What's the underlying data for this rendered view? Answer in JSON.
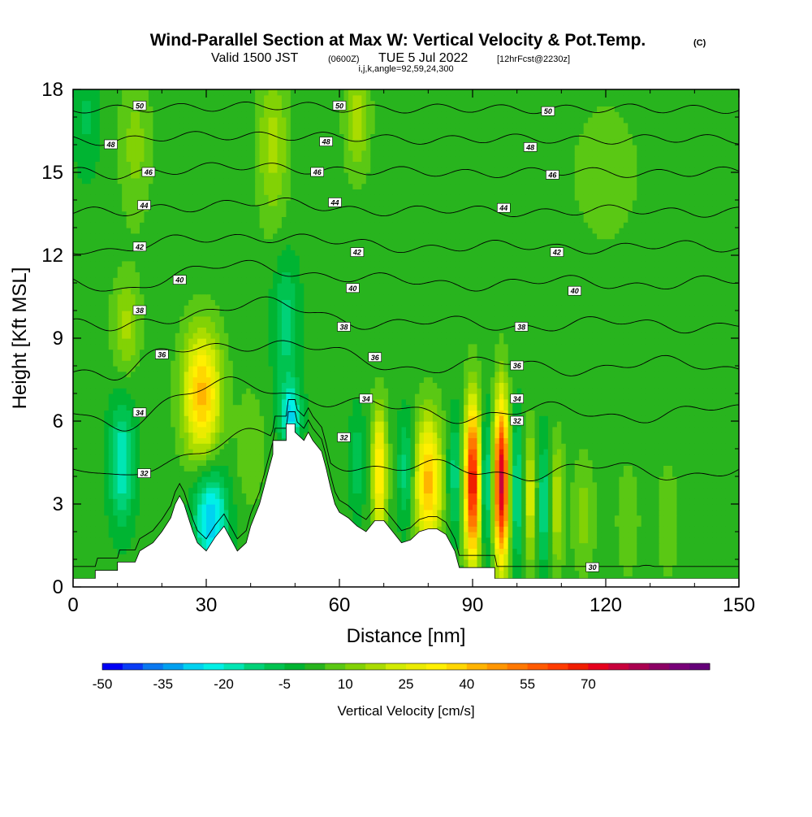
{
  "header": {
    "title": "Wind-Parallel Section at Max W: Vertical Velocity & Pot.Temp.",
    "copyright": "(C)",
    "valid_prefix": "Valid 1500 JST",
    "valid_zulu": "(0600Z)",
    "valid_date": "TUE 5 Jul 2022",
    "forecast": "[12hrFcst@2230z]",
    "params": "i,j,k,angle=92,59,24,300"
  },
  "chart_data": {
    "type": "heatmap",
    "title": "Wind-Parallel Section at Max W: Vertical Velocity & Pot.Temp.",
    "xlabel": "Distance [nm]",
    "ylabel": "Height [Kft MSL]",
    "xlim": [
      0,
      150
    ],
    "ylim": [
      0,
      18
    ],
    "x_ticks": [
      "0",
      "30",
      "60",
      "90",
      "120",
      "150"
    ],
    "y_ticks": [
      "0",
      "3",
      "6",
      "9",
      "12",
      "15",
      "18"
    ],
    "background_w": 2,
    "terrain": [
      [
        0,
        0.3
      ],
      [
        5,
        0.3
      ],
      [
        5,
        0.6
      ],
      [
        10,
        0.6
      ],
      [
        10,
        0.9
      ],
      [
        14,
        0.9
      ],
      [
        15,
        1.3
      ],
      [
        18,
        1.6
      ],
      [
        20,
        2.0
      ],
      [
        22,
        2.5
      ],
      [
        23,
        3.0
      ],
      [
        24,
        3.3
      ],
      [
        25,
        3.0
      ],
      [
        26,
        2.5
      ],
      [
        27,
        2.0
      ],
      [
        28,
        1.6
      ],
      [
        30,
        1.3
      ],
      [
        32,
        1.8
      ],
      [
        34,
        2.2
      ],
      [
        36,
        1.6
      ],
      [
        37,
        1.3
      ],
      [
        39,
        1.6
      ],
      [
        40,
        2.2
      ],
      [
        41,
        2.6
      ],
      [
        42,
        3.0
      ],
      [
        43,
        3.6
      ],
      [
        44,
        4.2
      ],
      [
        45,
        4.8
      ],
      [
        45,
        5.3
      ],
      [
        48,
        5.3
      ],
      [
        48,
        5.9
      ],
      [
        50,
        5.9
      ],
      [
        50,
        5.6
      ],
      [
        52,
        5.3
      ],
      [
        53,
        5.6
      ],
      [
        54,
        5.3
      ],
      [
        56,
        4.9
      ],
      [
        57,
        4.3
      ],
      [
        58,
        3.6
      ],
      [
        59,
        3.0
      ],
      [
        60,
        2.7
      ],
      [
        62,
        2.5
      ],
      [
        64,
        2.2
      ],
      [
        66,
        2.0
      ],
      [
        68,
        2.4
      ],
      [
        70,
        2.4
      ],
      [
        72,
        2.0
      ],
      [
        74,
        1.6
      ],
      [
        76,
        1.7
      ],
      [
        78,
        2.0
      ],
      [
        80,
        2.1
      ],
      [
        82,
        2.1
      ],
      [
        84,
        1.9
      ],
      [
        86,
        1.3
      ],
      [
        87,
        0.7
      ],
      [
        95,
        0.7
      ],
      [
        95,
        0.3
      ],
      [
        98,
        0.3
      ],
      [
        100,
        0.3
      ],
      [
        150,
        0.3
      ]
    ],
    "w_blobs": [
      {
        "x": 12,
        "y": 9.5,
        "w": 15,
        "sx": 2.2,
        "sy": 1.2
      },
      {
        "x": 11,
        "y": 4.5,
        "w": -22,
        "sx": 2.0,
        "sy": 1.5
      },
      {
        "x": 29,
        "y": 7.0,
        "w": 40,
        "sx": 3.0,
        "sy": 1.6
      },
      {
        "x": 31,
        "y": 2.5,
        "w": -32,
        "sx": 2.6,
        "sy": 1.2
      },
      {
        "x": 48,
        "y": 9.5,
        "w": -15,
        "sx": 2.0,
        "sy": 1.6
      },
      {
        "x": 49,
        "y": 6.2,
        "w": -28,
        "sx": 1.6,
        "sy": 0.8
      },
      {
        "x": 40,
        "y": 5.0,
        "w": 8,
        "sx": 2.2,
        "sy": 1.5
      },
      {
        "x": 64,
        "y": 4.5,
        "w": -12,
        "sx": 1.2,
        "sy": 1.2
      },
      {
        "x": 69,
        "y": 4.2,
        "w": 35,
        "sx": 1.2,
        "sy": 1.6
      },
      {
        "x": 75,
        "y": 4.2,
        "w": -16,
        "sx": 1.3,
        "sy": 1.4
      },
      {
        "x": 80,
        "y": 3.8,
        "w": 40,
        "sx": 2.2,
        "sy": 1.7
      },
      {
        "x": 86,
        "y": 4.0,
        "w": -16,
        "sx": 1.2,
        "sy": 1.5
      },
      {
        "x": 90,
        "y": 3.8,
        "w": 70,
        "sx": 1.3,
        "sy": 2.0
      },
      {
        "x": 93,
        "y": 3.8,
        "w": -22,
        "sx": 1.0,
        "sy": 1.7
      },
      {
        "x": 96.5,
        "y": 3.8,
        "w": 75,
        "sx": 1.2,
        "sy": 2.1
      },
      {
        "x": 100,
        "y": 3.5,
        "w": -20,
        "sx": 1.0,
        "sy": 1.8
      },
      {
        "x": 103,
        "y": 3.2,
        "w": 22,
        "sx": 1.1,
        "sy": 1.7
      },
      {
        "x": 106,
        "y": 3.0,
        "w": -18,
        "sx": 1.0,
        "sy": 1.6
      },
      {
        "x": 109,
        "y": 3.0,
        "w": 18,
        "sx": 1.1,
        "sy": 1.6
      },
      {
        "x": 115,
        "y": 2.6,
        "w": 10,
        "sx": 1.8,
        "sy": 1.6
      },
      {
        "x": 125,
        "y": 2.4,
        "w": 8,
        "sx": 1.8,
        "sy": 1.5
      },
      {
        "x": 134,
        "y": 2.4,
        "w": 8,
        "sx": 1.6,
        "sy": 1.5
      },
      {
        "x": 14,
        "y": 16.0,
        "w": 10,
        "sx": 2.5,
        "sy": 2.0
      },
      {
        "x": 45,
        "y": 16.0,
        "w": 15,
        "sx": 2.5,
        "sy": 2.0
      },
      {
        "x": 64,
        "y": 17.0,
        "w": 15,
        "sx": 2.0,
        "sy": 1.5
      },
      {
        "x": 3,
        "y": 17.0,
        "w": -8,
        "sx": 2.0,
        "sy": 1.5
      },
      {
        "x": 120,
        "y": 15.0,
        "w": 6,
        "sx": 6.0,
        "sy": 2.0
      }
    ],
    "theta_isolines": [
      {
        "level": 30,
        "base": 0.4,
        "bump": 1.0
      },
      {
        "level": 32,
        "base": 4.2,
        "bump": 1.2
      },
      {
        "level": 34,
        "base": 6.3,
        "bump": 1.0
      },
      {
        "level": 36,
        "base": 8.0,
        "bump": 0.9
      },
      {
        "level": 38,
        "base": 9.5,
        "bump": 0.7
      },
      {
        "level": 40,
        "base": 11.0,
        "bump": 0.6
      },
      {
        "level": 42,
        "base": 12.3,
        "bump": 0.4
      },
      {
        "level": 44,
        "base": 13.6,
        "bump": 0.3
      },
      {
        "level": 46,
        "base": 15.0,
        "bump": 0.2
      },
      {
        "level": 48,
        "base": 16.2,
        "bump": 0.15
      },
      {
        "level": 50,
        "base": 17.3,
        "bump": 0.1
      }
    ],
    "contour_labels": [
      {
        "text": "50",
        "x": 15,
        "y": 17.4
      },
      {
        "text": "50",
        "x": 60,
        "y": 17.4
      },
      {
        "text": "50",
        "x": 107,
        "y": 17.2
      },
      {
        "text": "48",
        "x": 8.5,
        "y": 16.0
      },
      {
        "text": "48",
        "x": 57,
        "y": 16.1
      },
      {
        "text": "48",
        "x": 103,
        "y": 15.9
      },
      {
        "text": "46",
        "x": 17,
        "y": 15.0
      },
      {
        "text": "46",
        "x": 55,
        "y": 15.0
      },
      {
        "text": "46",
        "x": 108,
        "y": 14.9
      },
      {
        "text": "44",
        "x": 16,
        "y": 13.8
      },
      {
        "text": "44",
        "x": 59,
        "y": 13.9
      },
      {
        "text": "44",
        "x": 97,
        "y": 13.7
      },
      {
        "text": "42",
        "x": 15,
        "y": 12.3
      },
      {
        "text": "42",
        "x": 64,
        "y": 12.1
      },
      {
        "text": "42",
        "x": 109,
        "y": 12.1
      },
      {
        "text": "40",
        "x": 24,
        "y": 11.1
      },
      {
        "text": "40",
        "x": 63,
        "y": 10.8
      },
      {
        "text": "40",
        "x": 113,
        "y": 10.7
      },
      {
        "text": "38",
        "x": 15,
        "y": 10.0
      },
      {
        "text": "38",
        "x": 61,
        "y": 9.4
      },
      {
        "text": "38",
        "x": 101,
        "y": 9.4
      },
      {
        "text": "36",
        "x": 20,
        "y": 8.4
      },
      {
        "text": "36",
        "x": 68,
        "y": 8.3
      },
      {
        "text": "36",
        "x": 100,
        "y": 8.0
      },
      {
        "text": "34",
        "x": 15,
        "y": 6.3
      },
      {
        "text": "34",
        "x": 66,
        "y": 6.8
      },
      {
        "text": "34",
        "x": 100,
        "y": 6.8
      },
      {
        "text": "32",
        "x": 16,
        "y": 4.1
      },
      {
        "text": "32",
        "x": 61,
        "y": 5.4
      },
      {
        "text": "32",
        "x": 100,
        "y": 6.0
      },
      {
        "text": "30",
        "x": 117,
        "y": 0.7
      }
    ]
  },
  "colorbar": {
    "title": "Vertical Velocity [cm/s]",
    "tick_labels": [
      "-50",
      "-35",
      "-20",
      "-5",
      "10",
      "25",
      "40",
      "55",
      "70"
    ],
    "colors": [
      "#0000f5",
      "#0a3cf5",
      "#0a78f0",
      "#00a0f0",
      "#00d2f0",
      "#00f0e6",
      "#00e6b4",
      "#00d278",
      "#00c350",
      "#00b432",
      "#28b41e",
      "#5ac814",
      "#82d205",
      "#aadc00",
      "#d2eb00",
      "#ebeb00",
      "#fff000",
      "#ffd700",
      "#ffb400",
      "#ff9600",
      "#ff7800",
      "#ff5a00",
      "#ff3c00",
      "#f01e00",
      "#e6001e",
      "#c8003c",
      "#aa0050",
      "#8c0064",
      "#780078",
      "#640078"
    ]
  }
}
